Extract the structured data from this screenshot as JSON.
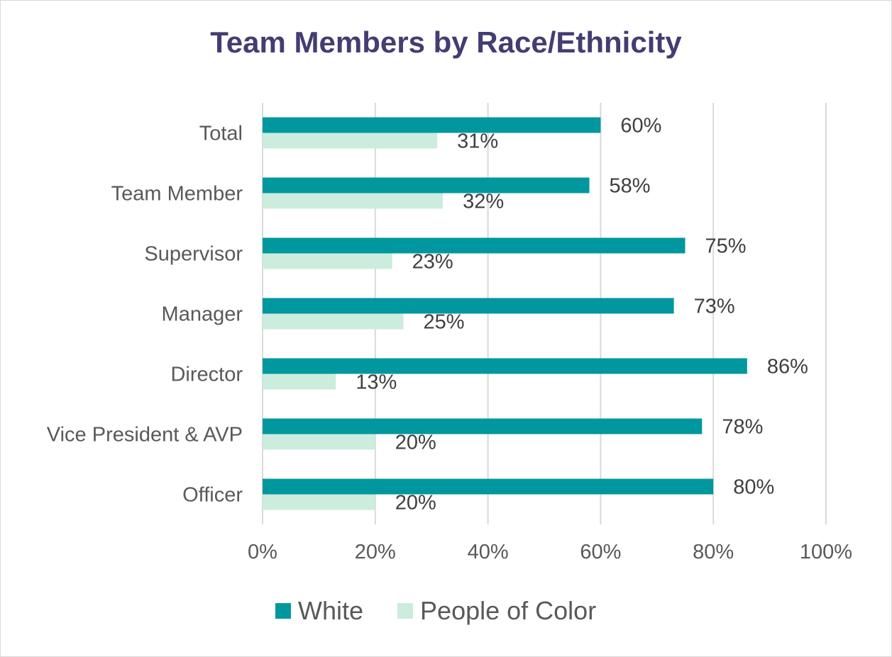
{
  "chart_data": {
    "type": "bar",
    "orientation": "horizontal",
    "title": "Team Members by Race/Ethnicity",
    "categories": [
      "Total",
      "Team Member",
      "Supervisor",
      "Manager",
      "Director",
      "Vice President & AVP",
      "Officer"
    ],
    "series": [
      {
        "name": "White",
        "color": "#00979f",
        "values": [
          60,
          58,
          75,
          73,
          86,
          78,
          80
        ]
      },
      {
        "name": "People of Color",
        "color": "#ccecdd",
        "values": [
          31,
          32,
          23,
          25,
          13,
          20,
          20
        ]
      }
    ],
    "value_suffix": "%",
    "xlim": [
      0,
      100
    ],
    "x_ticks": [
      "0%",
      "20%",
      "40%",
      "60%",
      "80%",
      "100%"
    ],
    "grid": "vertical",
    "legend": "bottom"
  }
}
